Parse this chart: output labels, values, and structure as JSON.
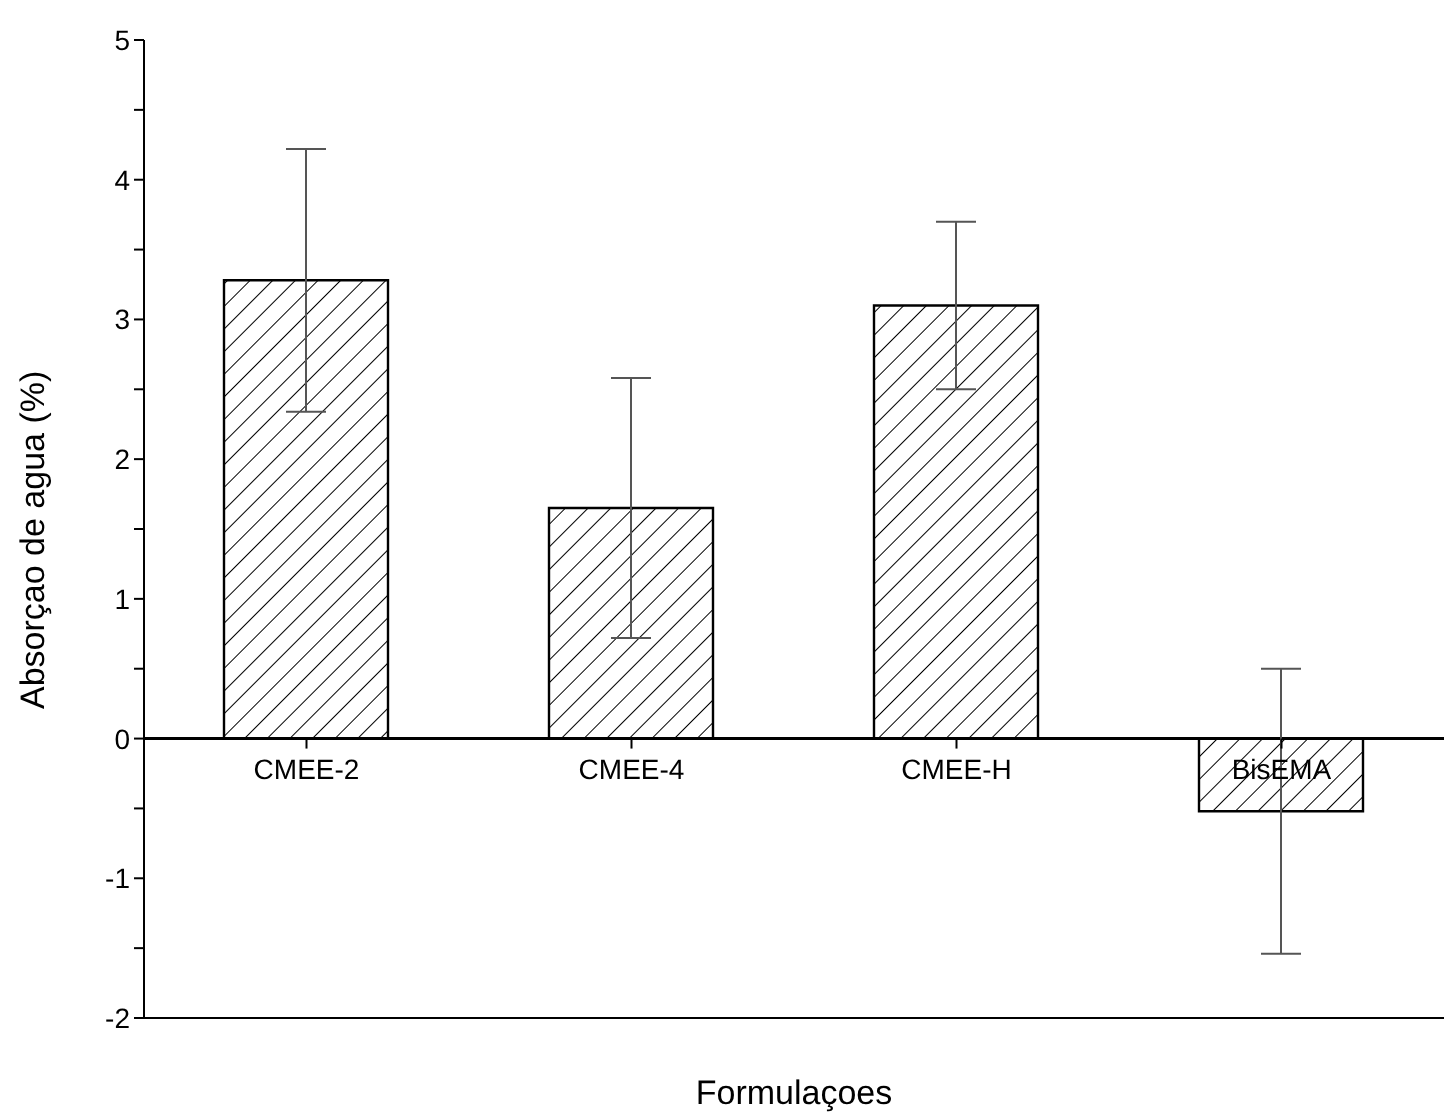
{
  "chart_data": {
    "type": "bar",
    "xlabel": "Formulaçoes",
    "ylabel": "Absorçao de agua (%)",
    "categories": [
      "CMEE-2",
      "CMEE-4",
      "CMEE-H",
      "BisEMA"
    ],
    "values": [
      3.28,
      1.65,
      3.1,
      -0.52
    ],
    "errors": [
      0.94,
      0.93,
      0.6,
      1.02
    ],
    "color": "#000000",
    "ylim": [
      -2,
      5
    ],
    "yticks": [
      -2,
      {
        "value": -1.5,
        "label": null
      },
      -1,
      {
        "value": -0.5,
        "label": null
      },
      0,
      {
        "value": 0.5,
        "label": null
      },
      1,
      {
        "value": 1.5,
        "label": null
      },
      2,
      {
        "value": 2.5,
        "label": null
      },
      3,
      {
        "value": 3.5,
        "label": null
      },
      4,
      {
        "value": 4.5,
        "label": null
      },
      5
    ],
    "grid": false,
    "legend": false
  }
}
